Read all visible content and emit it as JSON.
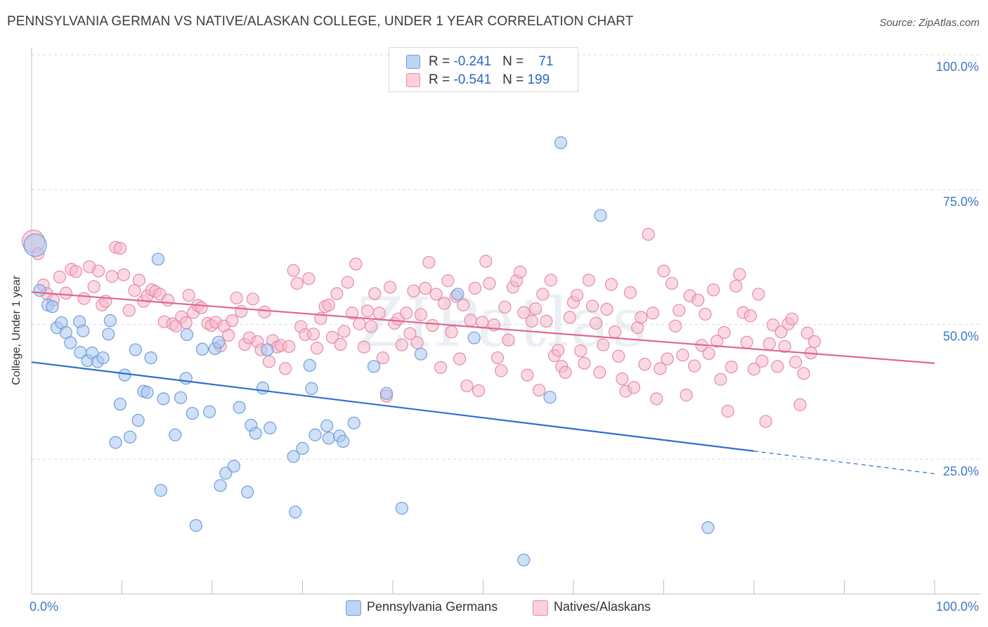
{
  "title": "PENNSYLVANIA GERMAN VS NATIVE/ALASKAN COLLEGE, UNDER 1 YEAR CORRELATION CHART",
  "source": "Source: ZipAtlas.com",
  "watermark": "ZIPatlas",
  "colors": {
    "blue_fill": "#a9c7ef",
    "blue_stroke": "#6f9ee0",
    "blue_line": "#2f6fd0",
    "pink_fill": "#f6b9cc",
    "pink_stroke": "#e88aa8",
    "pink_line": "#e0668f",
    "axis_text": "#3f78c9",
    "grid": "#d9d9d9"
  },
  "legend_top": [
    {
      "swatch": "blue",
      "r_label": "R = ",
      "r_value": "-0.241",
      "n_label": "N = ",
      "n_value": "71"
    },
    {
      "swatch": "pink",
      "r_label": "R = ",
      "r_value": "-0.541",
      "n_label": "N = ",
      "n_value": "199"
    }
  ],
  "legend_bottom": [
    {
      "swatch": "blue",
      "label": "Pennsylvania Germans"
    },
    {
      "swatch": "pink",
      "label": "Natives/Alaskans"
    }
  ],
  "chart_data": {
    "type": "scatter",
    "title": "PENNSYLVANIA GERMAN VS NATIVE/ALASKAN COLLEGE, UNDER 1 YEAR CORRELATION CHART",
    "xlabel": "",
    "ylabel": "College, Under 1 year",
    "xlim": [
      0,
      100
    ],
    "ylim": [
      0,
      100
    ],
    "x_tick_labels": [
      "0.0%",
      "100.0%"
    ],
    "y_tick_labels": [
      "100.0%",
      "75.0%",
      "50.0%",
      "25.0%"
    ],
    "y_gridlines": [
      100,
      75,
      50,
      25
    ],
    "grid": true,
    "series": [
      {
        "name": "Pennsylvania Germans",
        "color": "blue",
        "points": [
          [
            0.4,
            64.7
          ],
          [
            0.9,
            56.3
          ],
          [
            1.8,
            53.6
          ],
          [
            2.3,
            53.3
          ],
          [
            2.8,
            49.4
          ],
          [
            3.3,
            50.3
          ],
          [
            3.8,
            48.5
          ],
          [
            4.3,
            46.6
          ],
          [
            5.3,
            50.5
          ],
          [
            5.4,
            44.8
          ],
          [
            5.7,
            48.8
          ],
          [
            6.2,
            43.3
          ],
          [
            6.7,
            44.7
          ],
          [
            7.3,
            43.1
          ],
          [
            7.9,
            43.8
          ],
          [
            8.5,
            48.2
          ],
          [
            8.7,
            50.7
          ],
          [
            9.3,
            28.1
          ],
          [
            9.8,
            35.2
          ],
          [
            10.3,
            40.6
          ],
          [
            10.9,
            29.1
          ],
          [
            11.5,
            45.3
          ],
          [
            11.8,
            32.2
          ],
          [
            12.4,
            37.6
          ],
          [
            12.8,
            37.4
          ],
          [
            13.2,
            43.8
          ],
          [
            14.0,
            62.1
          ],
          [
            14.3,
            19.2
          ],
          [
            14.6,
            36.2
          ],
          [
            15.9,
            29.5
          ],
          [
            16.5,
            36.4
          ],
          [
            17.1,
            40.0
          ],
          [
            17.2,
            48.1
          ],
          [
            17.8,
            33.5
          ],
          [
            18.2,
            12.7
          ],
          [
            18.9,
            45.4
          ],
          [
            19.7,
            33.8
          ],
          [
            20.3,
            45.5
          ],
          [
            20.7,
            46.7
          ],
          [
            20.9,
            20.1
          ],
          [
            21.5,
            22.4
          ],
          [
            22.4,
            23.7
          ],
          [
            23.0,
            34.6
          ],
          [
            23.9,
            18.9
          ],
          [
            24.3,
            31.3
          ],
          [
            24.8,
            29.8
          ],
          [
            25.6,
            38.2
          ],
          [
            26.1,
            45.3
          ],
          [
            26.4,
            30.8
          ],
          [
            29.0,
            25.5
          ],
          [
            29.2,
            15.2
          ],
          [
            30.0,
            27.0
          ],
          [
            30.8,
            42.4
          ],
          [
            31.0,
            38.1
          ],
          [
            31.4,
            29.5
          ],
          [
            32.7,
            31.2
          ],
          [
            32.9,
            28.9
          ],
          [
            34.1,
            29.3
          ],
          [
            34.5,
            28.3
          ],
          [
            35.7,
            31.7
          ],
          [
            37.9,
            42.2
          ],
          [
            39.3,
            37.2
          ],
          [
            41.0,
            15.9
          ],
          [
            43.1,
            44.5
          ],
          [
            47.2,
            55.6
          ],
          [
            54.5,
            6.3
          ],
          [
            57.4,
            36.5
          ],
          [
            58.6,
            83.7
          ],
          [
            63.0,
            70.2
          ],
          [
            74.9,
            12.3
          ],
          [
            49.0,
            47.5
          ]
        ]
      },
      {
        "name": "Natives/Alaskans",
        "color": "pink",
        "points": [
          [
            0.2,
            65.4
          ],
          [
            0.7,
            63.1
          ],
          [
            1.3,
            57.3
          ],
          [
            1.7,
            55.7
          ],
          [
            2.4,
            54.5
          ],
          [
            3.1,
            58.8
          ],
          [
            3.8,
            55.8
          ],
          [
            4.4,
            60.2
          ],
          [
            4.9,
            59.8
          ],
          [
            5.8,
            54.8
          ],
          [
            6.4,
            60.7
          ],
          [
            6.9,
            57.0
          ],
          [
            7.4,
            59.9
          ],
          [
            7.8,
            53.6
          ],
          [
            8.2,
            54.3
          ],
          [
            8.9,
            58.9
          ],
          [
            9.3,
            64.3
          ],
          [
            9.8,
            64.1
          ],
          [
            10.2,
            59.2
          ],
          [
            10.8,
            52.6
          ],
          [
            11.4,
            56.3
          ],
          [
            11.9,
            58.2
          ],
          [
            12.4,
            54.3
          ],
          [
            12.8,
            55.3
          ],
          [
            13.3,
            56.4
          ],
          [
            13.7,
            56.1
          ],
          [
            14.2,
            55.6
          ],
          [
            14.7,
            50.5
          ],
          [
            15.1,
            54.5
          ],
          [
            15.6,
            50.1
          ],
          [
            16.0,
            49.7
          ],
          [
            16.6,
            51.4
          ],
          [
            17.1,
            50.3
          ],
          [
            17.4,
            55.4
          ],
          [
            17.9,
            52.2
          ],
          [
            18.4,
            53.5
          ],
          [
            18.8,
            53.1
          ],
          [
            19.5,
            50.2
          ],
          [
            19.9,
            49.8
          ],
          [
            20.4,
            50.4
          ],
          [
            20.9,
            46.0
          ],
          [
            21.3,
            49.7
          ],
          [
            21.8,
            48.0
          ],
          [
            22.2,
            50.7
          ],
          [
            22.7,
            54.9
          ],
          [
            23.2,
            52.4
          ],
          [
            23.6,
            46.3
          ],
          [
            24.1,
            47.5
          ],
          [
            24.5,
            54.7
          ],
          [
            25.0,
            46.8
          ],
          [
            25.4,
            45.3
          ],
          [
            25.8,
            52.3
          ],
          [
            26.3,
            43.1
          ],
          [
            26.7,
            47.0
          ],
          [
            27.2,
            45.8
          ],
          [
            27.6,
            46.1
          ],
          [
            28.1,
            41.8
          ],
          [
            28.5,
            45.9
          ],
          [
            29.0,
            60.0
          ],
          [
            29.4,
            57.6
          ],
          [
            29.8,
            49.6
          ],
          [
            30.3,
            48.1
          ],
          [
            30.7,
            58.5
          ],
          [
            31.2,
            48.2
          ],
          [
            31.6,
            45.6
          ],
          [
            32.0,
            51.1
          ],
          [
            32.5,
            53.3
          ],
          [
            32.9,
            53.6
          ],
          [
            33.3,
            47.6
          ],
          [
            33.8,
            55.7
          ],
          [
            34.2,
            46.3
          ],
          [
            34.6,
            48.7
          ],
          [
            35.0,
            57.8
          ],
          [
            35.5,
            52.1
          ],
          [
            35.9,
            61.2
          ],
          [
            36.3,
            50.1
          ],
          [
            36.8,
            45.8
          ],
          [
            37.2,
            52.5
          ],
          [
            37.6,
            49.6
          ],
          [
            38.0,
            55.7
          ],
          [
            38.5,
            52.1
          ],
          [
            38.9,
            43.8
          ],
          [
            39.3,
            36.7
          ],
          [
            39.7,
            56.9
          ],
          [
            40.2,
            50.2
          ],
          [
            40.6,
            51.0
          ],
          [
            41.0,
            46.2
          ],
          [
            41.5,
            52.1
          ],
          [
            41.9,
            48.3
          ],
          [
            42.3,
            56.2
          ],
          [
            42.7,
            46.6
          ],
          [
            43.1,
            51.8
          ],
          [
            43.6,
            56.7
          ],
          [
            44.0,
            61.5
          ],
          [
            44.4,
            49.8
          ],
          [
            44.8,
            55.6
          ],
          [
            45.3,
            42.0
          ],
          [
            45.7,
            53.9
          ],
          [
            46.1,
            58.1
          ],
          [
            46.5,
            48.6
          ],
          [
            47.0,
            55.2
          ],
          [
            47.4,
            43.6
          ],
          [
            47.8,
            53.6
          ],
          [
            48.2,
            38.6
          ],
          [
            48.6,
            50.8
          ],
          [
            49.1,
            56.7
          ],
          [
            49.5,
            37.7
          ],
          [
            49.9,
            50.4
          ],
          [
            50.3,
            61.7
          ],
          [
            50.7,
            57.6
          ],
          [
            51.2,
            49.9
          ],
          [
            51.6,
            43.8
          ],
          [
            52.0,
            41.4
          ],
          [
            52.4,
            53.2
          ],
          [
            52.8,
            47.1
          ],
          [
            53.3,
            56.9
          ],
          [
            53.7,
            58.1
          ],
          [
            54.1,
            59.7
          ],
          [
            54.5,
            52.2
          ],
          [
            54.9,
            40.6
          ],
          [
            55.4,
            50.6
          ],
          [
            55.8,
            52.9
          ],
          [
            56.2,
            37.8
          ],
          [
            56.6,
            55.6
          ],
          [
            57.0,
            50.6
          ],
          [
            57.5,
            58.2
          ],
          [
            57.9,
            44.2
          ],
          [
            58.3,
            45.2
          ],
          [
            58.7,
            42.2
          ],
          [
            59.1,
            41.1
          ],
          [
            59.6,
            51.3
          ],
          [
            60.0,
            54.1
          ],
          [
            60.4,
            55.4
          ],
          [
            60.8,
            45.1
          ],
          [
            61.2,
            42.8
          ],
          [
            61.7,
            58.2
          ],
          [
            62.1,
            53.4
          ],
          [
            62.5,
            50.2
          ],
          [
            62.9,
            41.1
          ],
          [
            63.3,
            46.2
          ],
          [
            63.7,
            52.8
          ],
          [
            64.2,
            57.4
          ],
          [
            64.6,
            48.6
          ],
          [
            65.0,
            44.1
          ],
          [
            65.4,
            39.9
          ],
          [
            65.8,
            37.6
          ],
          [
            66.3,
            55.9
          ],
          [
            66.7,
            38.3
          ],
          [
            67.1,
            49.4
          ],
          [
            67.5,
            51.3
          ],
          [
            67.9,
            42.6
          ],
          [
            68.3,
            66.7
          ],
          [
            68.8,
            52.1
          ],
          [
            69.2,
            36.2
          ],
          [
            69.6,
            41.8
          ],
          [
            70.0,
            59.9
          ],
          [
            70.4,
            43.6
          ],
          [
            70.9,
            57.6
          ],
          [
            71.3,
            49.7
          ],
          [
            71.7,
            52.6
          ],
          [
            72.1,
            44.3
          ],
          [
            72.5,
            36.9
          ],
          [
            72.9,
            55.3
          ],
          [
            73.4,
            42.3
          ],
          [
            73.8,
            54.5
          ],
          [
            74.2,
            46.1
          ],
          [
            74.6,
            51.9
          ],
          [
            75.0,
            44.6
          ],
          [
            75.5,
            56.4
          ],
          [
            75.9,
            46.9
          ],
          [
            76.3,
            39.8
          ],
          [
            76.7,
            48.5
          ],
          [
            77.1,
            33.9
          ],
          [
            77.5,
            42.1
          ],
          [
            78.0,
            57.1
          ],
          [
            78.4,
            59.3
          ],
          [
            78.8,
            52.2
          ],
          [
            79.2,
            46.7
          ],
          [
            79.6,
            51.6
          ],
          [
            80.0,
            41.7
          ],
          [
            80.5,
            55.6
          ],
          [
            80.9,
            43.2
          ],
          [
            81.3,
            32.0
          ],
          [
            81.7,
            46.4
          ],
          [
            82.1,
            49.9
          ],
          [
            82.6,
            42.2
          ],
          [
            83.0,
            48.6
          ],
          [
            83.4,
            45.9
          ],
          [
            83.8,
            50.1
          ],
          [
            84.2,
            51.0
          ],
          [
            84.6,
            43.0
          ],
          [
            85.1,
            35.1
          ],
          [
            85.5,
            40.9
          ],
          [
            85.9,
            48.4
          ],
          [
            86.3,
            44.7
          ],
          [
            86.7,
            46.8
          ]
        ]
      }
    ],
    "trend_lines": [
      {
        "series": "Pennsylvania Germans",
        "x": [
          0,
          80
        ],
        "y": [
          43.0,
          26.5
        ],
        "dashed_to": [
          100,
          22.3
        ]
      },
      {
        "series": "Natives/Alaskans",
        "x": [
          0,
          100
        ],
        "y": [
          56.0,
          42.8
        ]
      }
    ]
  }
}
